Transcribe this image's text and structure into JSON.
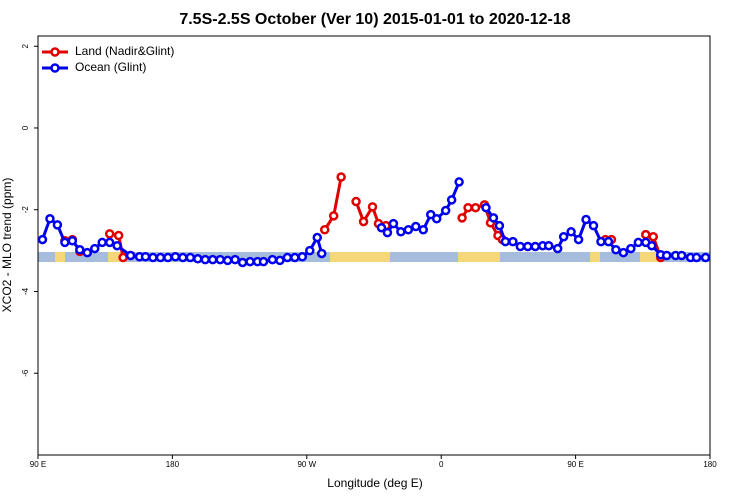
{
  "chart_data": {
    "type": "line",
    "title": "7.5S-2.5S October (Ver 10)   2015-01-01 to 2020-12-18",
    "x_label": "Longitude (deg E)",
    "y_label": "XCO2 - MLO trend (ppm)",
    "xlim": [
      90,
      540
    ],
    "xticks": [
      {
        "value": 90,
        "label": "90 E"
      },
      180,
      {
        "value": 270,
        "label": "90 W"
      },
      {
        "value": 360,
        "label": "0"
      },
      {
        "value": 450,
        "label": "90 E"
      },
      {
        "value": 540,
        "label": "180"
      }
    ],
    "ylim": [
      -8,
      2.25
    ],
    "yticks": [
      2,
      0,
      -2,
      -4,
      -6
    ],
    "legend": "upper left",
    "series": [
      {
        "name": "Land (Nadir&Glint)",
        "color": "#e00000",
        "x": [
          108,
          113,
          118,
          null,
          138,
          144,
          147,
          152,
          null,
          282,
          288,
          293,
          null,
          303,
          308,
          314,
          318,
          323,
          null,
          374,
          378,
          383,
          389,
          393,
          398,
          401,
          null,
          470,
          474,
          null,
          497,
          502,
          507
        ],
        "values": [
          -2.76,
          -2.73,
          -3.02,
          null,
          -2.59,
          -2.63,
          -3.17,
          -3.12,
          null,
          -2.49,
          -2.15,
          -1.2,
          null,
          -1.8,
          -2.29,
          -1.93,
          -2.34,
          -2.39,
          null,
          -2.2,
          -1.95,
          -1.95,
          -1.88,
          -2.32,
          -2.63,
          -2.73,
          null,
          -2.73,
          -2.73,
          null,
          -2.61,
          -2.66,
          -3.17
        ]
      },
      {
        "name": "Ocean (Glint)",
        "color": "#0000ee",
        "x": [
          93,
          98,
          103,
          108,
          113,
          118,
          123,
          128,
          133,
          138,
          143,
          152,
          158,
          162,
          167,
          172,
          177,
          182,
          187,
          192,
          197,
          202,
          207,
          212,
          217,
          222,
          227,
          232,
          237,
          241,
          247,
          252,
          257,
          262,
          267,
          272,
          277,
          280,
          null,
          320,
          324,
          328,
          333,
          338,
          343,
          348,
          353,
          357,
          363,
          367,
          372,
          null,
          390,
          395,
          399,
          403,
          408,
          413,
          418,
          423,
          428,
          432,
          438,
          442,
          447,
          452,
          457,
          462,
          467,
          472,
          477,
          482,
          487,
          492,
          497,
          501,
          507,
          511,
          517,
          521,
          527,
          531,
          537
        ],
        "values": [
          -2.73,
          -2.22,
          -2.37,
          -2.8,
          -2.76,
          -2.98,
          -3.05,
          -2.95,
          -2.8,
          -2.8,
          -2.88,
          -3.12,
          -3.15,
          -3.15,
          -3.17,
          -3.17,
          -3.17,
          -3.15,
          -3.17,
          -3.17,
          -3.2,
          -3.22,
          -3.22,
          -3.22,
          -3.24,
          -3.22,
          -3.29,
          -3.27,
          -3.27,
          -3.27,
          -3.22,
          -3.24,
          -3.17,
          -3.17,
          -3.15,
          -3.0,
          -2.68,
          -3.07,
          null,
          -2.44,
          -2.56,
          -2.34,
          -2.54,
          -2.49,
          -2.41,
          -2.49,
          -2.12,
          -2.22,
          -2.02,
          -1.76,
          -1.32,
          null,
          -1.95,
          -2.2,
          -2.39,
          -2.78,
          -2.78,
          -2.9,
          -2.9,
          -2.9,
          -2.88,
          -2.88,
          -2.95,
          -2.66,
          -2.54,
          -2.73,
          -2.24,
          -2.39,
          -2.78,
          -2.78,
          -2.98,
          -3.05,
          -2.95,
          -2.8,
          -2.8,
          -2.88,
          -3.1,
          -3.12,
          -3.12,
          -3.12,
          -3.17,
          -3.17,
          -3.17
        ]
      }
    ]
  }
}
